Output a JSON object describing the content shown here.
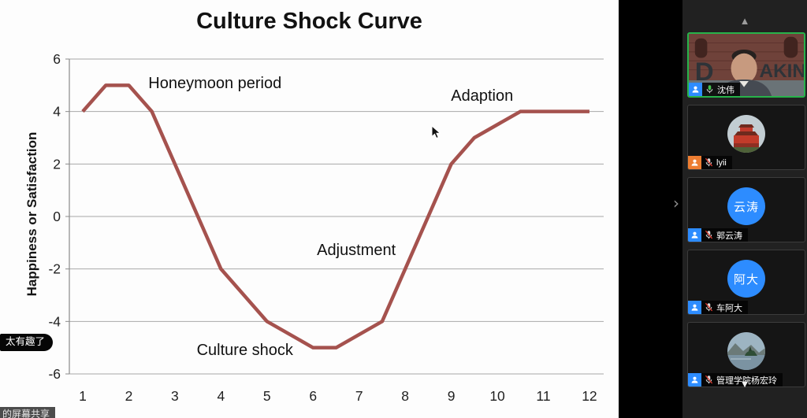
{
  "chart_data": {
    "type": "line",
    "title": "Culture Shock Curve",
    "xlabel": "",
    "ylabel": "Happiness or Satisfaction",
    "x": [
      1,
      1.5,
      2,
      2.5,
      3,
      4,
      5,
      6,
      6.5,
      7.5,
      8,
      9,
      9.5,
      10.5,
      12
    ],
    "y": [
      4,
      5,
      5,
      4,
      2,
      -2,
      -4,
      -5,
      -5,
      -4,
      -2,
      2,
      3,
      4,
      4
    ],
    "xticks": [
      1,
      2,
      3,
      4,
      5,
      6,
      7,
      8,
      9,
      10,
      11,
      12
    ],
    "yticks": [
      6,
      4,
      2,
      0,
      -2,
      -4,
      -6
    ],
    "xlim": [
      1,
      12
    ],
    "ylim": [
      -6,
      6
    ],
    "grid": true,
    "legend": "none",
    "line_color": "#a5524e",
    "annotations": [
      {
        "label": "Honeymoon period",
        "x": 3.87,
        "y": 5.1
      },
      {
        "label": "Adaption",
        "x": 9.67,
        "y": 4.62
      },
      {
        "label": "Adjustment",
        "x": 6.94,
        "y": -1.26
      },
      {
        "label": "Culture shock",
        "x": 4.52,
        "y": -5.07
      }
    ]
  },
  "chat_bubble": {
    "text": "太有趣了"
  },
  "share_banner": {
    "text": "的屏幕共享"
  },
  "sidebar": {
    "scroll_up_icon": "▲",
    "scroll_down_icon": "▼",
    "collapse_chevron": "›",
    "participants": [
      {
        "name": "沈伟",
        "mic": "on",
        "active_speaker": true,
        "role_color": "#2d8cff",
        "avatar": "photo-deakin-sign"
      },
      {
        "name": "lyii",
        "mic": "muted",
        "active_speaker": false,
        "role_color": "#ed7d31",
        "avatar": "photo-palace"
      },
      {
        "name": "郭云涛",
        "mic": "muted",
        "active_speaker": false,
        "role_color": "#2d8cff",
        "avatar": "initials",
        "initials": "云涛",
        "avatar_color": "#2d8cff"
      },
      {
        "name": "车阿大",
        "mic": "muted",
        "active_speaker": false,
        "role_color": "#2d8cff",
        "avatar": "initials",
        "initials": "阿大",
        "avatar_color": "#2d8cff"
      },
      {
        "name": "管理学院杨宏玲",
        "mic": "muted",
        "active_speaker": false,
        "role_color": "#2d8cff",
        "avatar": "photo-lake"
      }
    ]
  }
}
